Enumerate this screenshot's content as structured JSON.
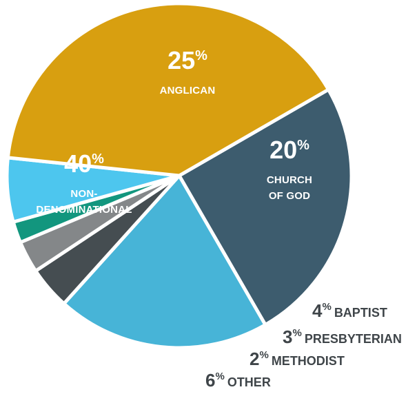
{
  "chart_data": {
    "type": "pie",
    "slices": [
      {
        "label": "ANGLICAN",
        "label_lines": [
          "ANGLICAN"
        ],
        "value": 25,
        "color": "#3d5c6e",
        "label_style": "inside"
      },
      {
        "label": "CHURCH OF GOD",
        "label_lines": [
          "CHURCH",
          "OF GOD"
        ],
        "value": 20,
        "color": "#47b4d7",
        "label_style": "inside"
      },
      {
        "label": "BAPTIST",
        "label_lines": [
          "BAPTIST"
        ],
        "value": 4,
        "color": "#454d51",
        "label_style": "outside"
      },
      {
        "label": "PRESBYTERIAN",
        "label_lines": [
          "PRESBYTERIAN"
        ],
        "value": 3,
        "color": "#848789",
        "label_style": "outside"
      },
      {
        "label": "METHODIST",
        "label_lines": [
          "METHODIST"
        ],
        "value": 2,
        "color": "#12967e",
        "label_style": "outside"
      },
      {
        "label": "OTHER",
        "label_lines": [
          "OTHER"
        ],
        "value": 6,
        "color": "#4dc6ee",
        "label_style": "outside"
      },
      {
        "label": "NON-DENOMINATIONAL",
        "label_lines": [
          "NON-",
          "DENOMINATIONAL"
        ],
        "value": 40,
        "color": "#d89f10",
        "label_style": "inside"
      }
    ],
    "value_suffix": "%",
    "start_angle_deg": -30,
    "direction": "clockwise",
    "legend": "none",
    "outside_label_color": "#3f4549"
  }
}
